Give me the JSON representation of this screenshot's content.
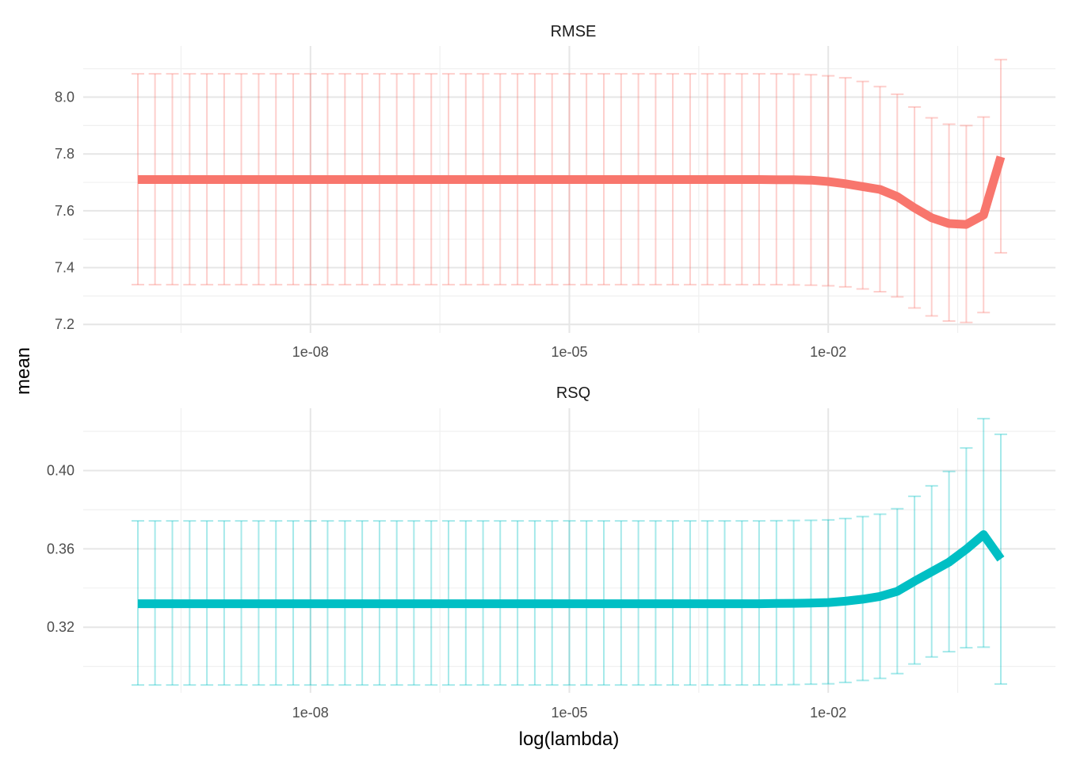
{
  "chart_data": {
    "type": "line",
    "xlabel": "log(lambda)",
    "ylabel": "mean",
    "x_scale": "log10",
    "xlim": [
      1e-10,
      1
    ],
    "x_tick_labels": [
      "1e-08",
      "1e-05",
      "1e-02"
    ],
    "x_tick_values": [
      1e-08,
      1e-05,
      0.01
    ],
    "grid": true,
    "lambda": [
      1e-10,
      1.58e-10,
      2.51e-10,
      3.98e-10,
      6.31e-10,
      1e-09,
      1.58e-09,
      2.51e-09,
      3.98e-09,
      6.31e-09,
      1e-08,
      1.58e-08,
      2.51e-08,
      3.98e-08,
      6.31e-08,
      1e-07,
      1.58e-07,
      2.51e-07,
      3.98e-07,
      6.31e-07,
      1e-06,
      1.58e-06,
      2.51e-06,
      3.98e-06,
      6.31e-06,
      1e-05,
      1.58e-05,
      2.51e-05,
      3.98e-05,
      6.31e-05,
      0.0001,
      0.000158,
      0.000251,
      0.000398,
      0.000631,
      0.001,
      0.00158,
      0.00251,
      0.00398,
      0.00631,
      0.01,
      0.0158,
      0.0251,
      0.0398,
      0.0631,
      0.1,
      0.158,
      0.251,
      0.398,
      0.631,
      1
    ],
    "panels": [
      {
        "title": "RMSE",
        "color": "#F8766D",
        "ylim": [
          7.17,
          8.18
        ],
        "y_ticks": [
          7.2,
          7.4,
          7.6,
          7.8,
          8.0
        ],
        "y_tick_labels": [
          "7.2",
          "7.4",
          "7.6",
          "7.8",
          "8.0"
        ],
        "mean": [
          7.71,
          7.71,
          7.71,
          7.71,
          7.71,
          7.71,
          7.71,
          7.71,
          7.71,
          7.71,
          7.71,
          7.71,
          7.71,
          7.71,
          7.71,
          7.71,
          7.71,
          7.71,
          7.71,
          7.71,
          7.71,
          7.71,
          7.71,
          7.71,
          7.71,
          7.71,
          7.71,
          7.71,
          7.71,
          7.71,
          7.71,
          7.71,
          7.71,
          7.71,
          7.71,
          7.71,
          7.71,
          7.709,
          7.709,
          7.708,
          7.703,
          7.695,
          7.685,
          7.675,
          7.65,
          7.61,
          7.575,
          7.555,
          7.552,
          7.585,
          7.79
        ],
        "lower": [
          7.34,
          7.34,
          7.34,
          7.34,
          7.34,
          7.34,
          7.34,
          7.34,
          7.34,
          7.34,
          7.34,
          7.34,
          7.34,
          7.34,
          7.34,
          7.34,
          7.34,
          7.34,
          7.34,
          7.34,
          7.34,
          7.34,
          7.34,
          7.34,
          7.34,
          7.34,
          7.34,
          7.34,
          7.34,
          7.34,
          7.34,
          7.34,
          7.34,
          7.34,
          7.34,
          7.34,
          7.34,
          7.34,
          7.339,
          7.338,
          7.336,
          7.332,
          7.325,
          7.315,
          7.297,
          7.258,
          7.23,
          7.212,
          7.207,
          7.242,
          7.452
        ],
        "upper": [
          8.082,
          8.082,
          8.082,
          8.082,
          8.082,
          8.082,
          8.082,
          8.082,
          8.082,
          8.082,
          8.082,
          8.082,
          8.082,
          8.082,
          8.082,
          8.082,
          8.082,
          8.082,
          8.082,
          8.082,
          8.082,
          8.082,
          8.082,
          8.082,
          8.082,
          8.082,
          8.082,
          8.082,
          8.082,
          8.082,
          8.082,
          8.082,
          8.082,
          8.082,
          8.082,
          8.082,
          8.082,
          8.082,
          8.081,
          8.079,
          8.075,
          8.068,
          8.055,
          8.037,
          8.01,
          7.965,
          7.927,
          7.905,
          7.9,
          7.93,
          8.132
        ]
      },
      {
        "title": "RSQ",
        "color": "#00BFC4",
        "ylim": [
          0.2865,
          0.4318
        ],
        "y_ticks": [
          0.32,
          0.36,
          0.4
        ],
        "y_tick_labels": [
          "0.32",
          "0.36",
          "0.40"
        ],
        "mean": [
          0.332,
          0.332,
          0.332,
          0.332,
          0.332,
          0.332,
          0.332,
          0.332,
          0.332,
          0.332,
          0.332,
          0.332,
          0.332,
          0.332,
          0.332,
          0.332,
          0.332,
          0.332,
          0.332,
          0.332,
          0.332,
          0.332,
          0.332,
          0.332,
          0.332,
          0.332,
          0.332,
          0.332,
          0.332,
          0.332,
          0.332,
          0.332,
          0.332,
          0.332,
          0.332,
          0.332,
          0.332,
          0.3321,
          0.3322,
          0.3323,
          0.3326,
          0.3333,
          0.3343,
          0.3357,
          0.3383,
          0.3435,
          0.3483,
          0.3532,
          0.3598,
          0.3673,
          0.3548
        ],
        "lower": [
          0.2905,
          0.2905,
          0.2905,
          0.2905,
          0.2905,
          0.2905,
          0.2905,
          0.2905,
          0.2905,
          0.2905,
          0.2905,
          0.2905,
          0.2905,
          0.2905,
          0.2905,
          0.2905,
          0.2905,
          0.2905,
          0.2905,
          0.2905,
          0.2905,
          0.2905,
          0.2905,
          0.2905,
          0.2905,
          0.2905,
          0.2905,
          0.2905,
          0.2905,
          0.2905,
          0.2905,
          0.2905,
          0.2905,
          0.2905,
          0.2905,
          0.2905,
          0.2905,
          0.2906,
          0.2907,
          0.2909,
          0.2911,
          0.2918,
          0.2928,
          0.2939,
          0.2963,
          0.3012,
          0.3048,
          0.3075,
          0.3095,
          0.3098,
          0.291
        ],
        "upper": [
          0.3743,
          0.3743,
          0.3743,
          0.3743,
          0.3743,
          0.3743,
          0.3743,
          0.3743,
          0.3743,
          0.3743,
          0.3743,
          0.3743,
          0.3743,
          0.3743,
          0.3743,
          0.3743,
          0.3743,
          0.3743,
          0.3743,
          0.3743,
          0.3743,
          0.3743,
          0.3743,
          0.3743,
          0.3743,
          0.3743,
          0.3743,
          0.3743,
          0.3743,
          0.3743,
          0.3743,
          0.3743,
          0.3743,
          0.3743,
          0.3743,
          0.3743,
          0.3743,
          0.3744,
          0.3745,
          0.3746,
          0.3748,
          0.3755,
          0.3765,
          0.3777,
          0.3805,
          0.3868,
          0.3922,
          0.3995,
          0.4115,
          0.4265,
          0.4185
        ]
      }
    ]
  }
}
